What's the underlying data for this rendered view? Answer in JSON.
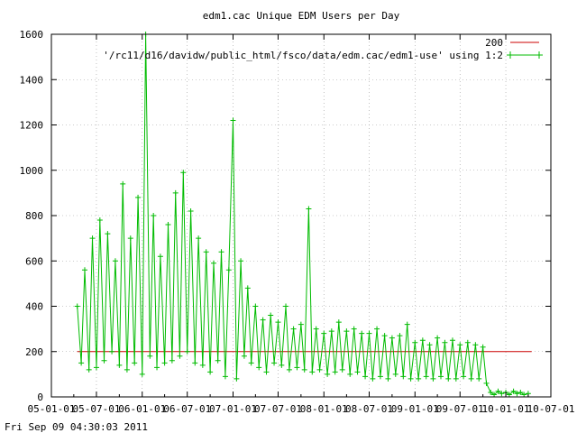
{
  "chart_data": {
    "type": "line",
    "title": "edm1.cac Unique EDM Users per Day",
    "xlabel": "",
    "ylabel": "",
    "ylim": [
      0,
      1600
    ],
    "xlim": [
      "2005-01-01",
      "2010-07-01"
    ],
    "grid": true,
    "legend_position": "top-right",
    "x_ticks": [
      "05-01-01",
      "05-07-01",
      "06-01-01",
      "06-07-01",
      "07-01-01",
      "07-07-01",
      "08-01-01",
      "08-07-01",
      "09-01-01",
      "09-07-01",
      "10-01-01",
      "10-07-01"
    ],
    "y_ticks": [
      0,
      200,
      400,
      600,
      800,
      1000,
      1200,
      1400,
      1600
    ],
    "series": [
      {
        "name": "200",
        "color": "#cc0000",
        "style": "line",
        "x": [
          "2005-04-15",
          "2010-04-15"
        ],
        "y": [
          200,
          200
        ]
      },
      {
        "name": "'/rc11/d16/davidw/public_html/fsco/data/edm.cac/edm1-use' using 1:2",
        "color": "#00bb00",
        "style": "linespoints",
        "x": [
          "2005-04-15",
          "2005-05-01",
          "2005-05-15",
          "2005-06-01",
          "2005-06-15",
          "2005-07-01",
          "2005-07-15",
          "2005-08-01",
          "2005-08-15",
          "2005-09-01",
          "2005-09-15",
          "2005-10-01",
          "2005-10-15",
          "2005-11-01",
          "2005-11-15",
          "2005-12-01",
          "2005-12-15",
          "2006-01-01",
          "2006-01-15",
          "2006-02-01",
          "2006-02-15",
          "2006-03-01",
          "2006-03-15",
          "2006-04-01",
          "2006-04-15",
          "2006-05-01",
          "2006-05-15",
          "2006-06-01",
          "2006-06-15",
          "2006-07-01",
          "2006-07-15",
          "2006-08-01",
          "2006-08-15",
          "2006-09-01",
          "2006-09-15",
          "2006-10-01",
          "2006-10-15",
          "2006-11-01",
          "2006-11-15",
          "2006-12-01",
          "2006-12-15",
          "2007-01-01",
          "2007-01-15",
          "2007-02-01",
          "2007-02-15",
          "2007-03-01",
          "2007-03-15",
          "2007-04-01",
          "2007-04-15",
          "2007-05-01",
          "2007-05-15",
          "2007-06-01",
          "2007-06-15",
          "2007-07-01",
          "2007-07-15",
          "2007-08-01",
          "2007-08-15",
          "2007-09-01",
          "2007-09-15",
          "2007-10-01",
          "2007-10-15",
          "2007-11-01",
          "2007-11-15",
          "2007-12-01",
          "2007-12-15",
          "2008-01-01",
          "2008-01-15",
          "2008-02-01",
          "2008-02-15",
          "2008-03-01",
          "2008-03-15",
          "2008-04-01",
          "2008-04-15",
          "2008-05-01",
          "2008-05-15",
          "2008-06-01",
          "2008-06-15",
          "2008-07-01",
          "2008-07-15",
          "2008-08-01",
          "2008-08-15",
          "2008-09-01",
          "2008-09-15",
          "2008-10-01",
          "2008-10-15",
          "2008-11-01",
          "2008-11-15",
          "2008-12-01",
          "2008-12-15",
          "2009-01-01",
          "2009-01-15",
          "2009-02-01",
          "2009-02-15",
          "2009-03-01",
          "2009-03-15",
          "2009-04-01",
          "2009-04-15",
          "2009-05-01",
          "2009-05-15",
          "2009-06-01",
          "2009-06-15",
          "2009-07-01",
          "2009-07-15",
          "2009-08-01",
          "2009-08-15",
          "2009-09-01",
          "2009-09-15",
          "2009-10-01",
          "2009-10-15",
          "2009-11-01",
          "2009-11-15",
          "2009-12-01",
          "2009-12-15",
          "2010-01-01",
          "2010-01-15",
          "2010-02-01",
          "2010-02-15",
          "2010-03-01",
          "2010-03-15",
          "2010-04-01"
        ],
        "y": [
          400,
          150,
          560,
          120,
          700,
          130,
          780,
          160,
          720,
          200,
          600,
          140,
          940,
          120,
          700,
          150,
          880,
          100,
          1600,
          180,
          800,
          130,
          620,
          150,
          760,
          160,
          900,
          180,
          990,
          200,
          820,
          150,
          700,
          140,
          640,
          110,
          590,
          160,
          640,
          90,
          560,
          1220,
          80,
          600,
          180,
          480,
          150,
          400,
          130,
          340,
          110,
          360,
          150,
          330,
          140,
          400,
          120,
          300,
          130,
          320,
          120,
          830,
          110,
          300,
          120,
          280,
          100,
          290,
          110,
          330,
          120,
          290,
          100,
          300,
          110,
          280,
          90,
          280,
          80,
          300,
          90,
          270,
          80,
          260,
          100,
          270,
          90,
          320,
          80,
          240,
          80,
          250,
          90,
          230,
          80,
          260,
          90,
          240,
          80,
          250,
          80,
          230,
          90,
          240,
          80,
          230,
          80,
          220,
          60,
          20,
          10,
          25,
          15,
          20,
          10,
          25,
          15,
          20,
          10,
          15
        ]
      }
    ]
  },
  "footer": {
    "timestamp": "Fri Sep 09 04:30:03 2011"
  }
}
